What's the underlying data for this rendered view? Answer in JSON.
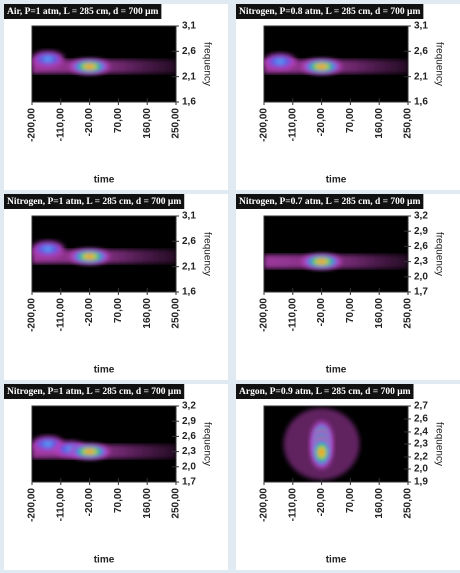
{
  "chart_data": [
    {
      "type": "heatmap",
      "title": "Air, P=1 atm, L = 285 cm, d = 700 μm",
      "xlabel": "time",
      "ylabel": "frequency",
      "xlim": [
        -200,
        250
      ],
      "ylim": [
        1.6,
        3.1
      ],
      "xticks": [
        {
          "value": -200,
          "label": "-200,00"
        },
        {
          "value": -110,
          "label": "-110,00"
        },
        {
          "value": -20,
          "label": "-20,00"
        },
        {
          "value": 70,
          "label": "70,00"
        },
        {
          "value": 160,
          "label": "160,00"
        },
        {
          "value": 250,
          "label": "250,00"
        }
      ],
      "yticks": [
        {
          "value": 3.1,
          "label": "3,1"
        },
        {
          "value": 2.6,
          "label": "2,6"
        },
        {
          "value": 2.1,
          "label": "2,1"
        },
        {
          "value": 1.6,
          "label": "1,6"
        }
      ],
      "peaks": [
        {
          "x": -150,
          "y": 2.45
        },
        {
          "x": -20,
          "y": 2.3
        }
      ]
    },
    {
      "type": "heatmap",
      "title": "Nitrogen, P=0.8 atm, L = 285 cm, d = 700 μm",
      "xlabel": "time",
      "ylabel": "frequency",
      "xlim": [
        -200,
        250
      ],
      "ylim": [
        1.6,
        3.1
      ],
      "xticks": [
        {
          "value": -200,
          "label": "-200,00"
        },
        {
          "value": -110,
          "label": "-110,00"
        },
        {
          "value": -20,
          "label": "-20,00"
        },
        {
          "value": 70,
          "label": "70,00"
        },
        {
          "value": 160,
          "label": "160,00"
        },
        {
          "value": 250,
          "label": "250,00"
        }
      ],
      "yticks": [
        {
          "value": 3.1,
          "label": "3,1"
        },
        {
          "value": 2.6,
          "label": "2,6"
        },
        {
          "value": 2.1,
          "label": "2,1"
        },
        {
          "value": 1.6,
          "label": "1,6"
        }
      ],
      "peaks": [
        {
          "x": -150,
          "y": 2.4
        },
        {
          "x": -20,
          "y": 2.3
        }
      ]
    },
    {
      "type": "heatmap",
      "title": "Nitrogen, P=1 atm, L = 285 cm, d = 700 μm",
      "xlabel": "time",
      "ylabel": "frequency",
      "xlim": [
        -200,
        250
      ],
      "ylim": [
        1.6,
        3.1
      ],
      "xticks": [
        {
          "value": -200,
          "label": "-200,00"
        },
        {
          "value": -110,
          "label": "-110,00"
        },
        {
          "value": -20,
          "label": "-20,00"
        },
        {
          "value": 70,
          "label": "70,00"
        },
        {
          "value": 160,
          "label": "160,00"
        },
        {
          "value": 250,
          "label": "250,00"
        }
      ],
      "yticks": [
        {
          "value": 3.1,
          "label": "3,1"
        },
        {
          "value": 2.6,
          "label": "2,6"
        },
        {
          "value": 2.1,
          "label": "2,1"
        },
        {
          "value": 1.6,
          "label": "1,6"
        }
      ],
      "peaks": [
        {
          "x": -150,
          "y": 2.45
        },
        {
          "x": -20,
          "y": 2.3
        }
      ]
    },
    {
      "type": "heatmap",
      "title": "Nitrogen, P=0.7 atm, L = 285 cm, d = 700 μm",
      "xlabel": "time",
      "ylabel": "frequency",
      "xlim": [
        -200,
        250
      ],
      "ylim": [
        1.7,
        3.2
      ],
      "xticks": [
        {
          "value": -200,
          "label": "-200,00"
        },
        {
          "value": -110,
          "label": "-110,00"
        },
        {
          "value": -20,
          "label": "-20,00"
        },
        {
          "value": 70,
          "label": "70,00"
        },
        {
          "value": 160,
          "label": "160,00"
        },
        {
          "value": 250,
          "label": "250,00"
        }
      ],
      "yticks": [
        {
          "value": 3.2,
          "label": "3,2"
        },
        {
          "value": 2.9,
          "label": "2,9"
        },
        {
          "value": 2.6,
          "label": "2,6"
        },
        {
          "value": 2.3,
          "label": "2,3"
        },
        {
          "value": 2.0,
          "label": "2,0"
        },
        {
          "value": 1.7,
          "label": "1,7"
        }
      ],
      "peaks": [
        {
          "x": -20,
          "y": 2.3
        }
      ]
    },
    {
      "type": "heatmap",
      "title": "Nitrogen, P=1 atm, L = 285 cm, d = 700 μm",
      "xlabel": "time",
      "ylabel": "frequency",
      "xlim": [
        -200,
        250
      ],
      "ylim": [
        1.7,
        3.2
      ],
      "xticks": [
        {
          "value": -200,
          "label": "-200,00"
        },
        {
          "value": -110,
          "label": "-110,00"
        },
        {
          "value": -20,
          "label": "-20,00"
        },
        {
          "value": 70,
          "label": "70,00"
        },
        {
          "value": 160,
          "label": "160,00"
        },
        {
          "value": 250,
          "label": "250,00"
        }
      ],
      "yticks": [
        {
          "value": 3.2,
          "label": "3,2"
        },
        {
          "value": 2.9,
          "label": "2,9"
        },
        {
          "value": 2.6,
          "label": "2,6"
        },
        {
          "value": 2.3,
          "label": "2,3"
        },
        {
          "value": 2.0,
          "label": "2,0"
        },
        {
          "value": 1.7,
          "label": "1,7"
        }
      ],
      "peaks": [
        {
          "x": -150,
          "y": 2.45
        },
        {
          "x": -80,
          "y": 2.35
        },
        {
          "x": -20,
          "y": 2.3
        }
      ]
    },
    {
      "type": "heatmap",
      "title": "Argon, P=0.9 atm, L = 285 cm, d = 700 μm",
      "xlabel": "time",
      "ylabel": "frequency",
      "xlim": [
        -200,
        250
      ],
      "ylim": [
        1.9,
        2.72
      ],
      "xticks": [
        {
          "value": -200,
          "label": "-200,00"
        },
        {
          "value": -110,
          "label": "-110,00"
        },
        {
          "value": -20,
          "label": "-20,00"
        },
        {
          "value": 70,
          "label": "70,00"
        },
        {
          "value": 160,
          "label": "160,00"
        },
        {
          "value": 250,
          "label": "250,00"
        }
      ],
      "yticks": [
        {
          "value": 2.72,
          "label": "2,7"
        },
        {
          "value": 2.58,
          "label": "2,6"
        },
        {
          "value": 2.44,
          "label": "2,4"
        },
        {
          "value": 2.31,
          "label": "2,3"
        },
        {
          "value": 2.17,
          "label": "2,2"
        },
        {
          "value": 2.04,
          "label": "2,0"
        },
        {
          "value": 1.9,
          "label": "1,9"
        }
      ],
      "peaks": [
        {
          "x": -20,
          "y": 2.38
        },
        {
          "x": -20,
          "y": 2.3
        },
        {
          "x": -20,
          "y": 2.22
        }
      ]
    }
  ]
}
